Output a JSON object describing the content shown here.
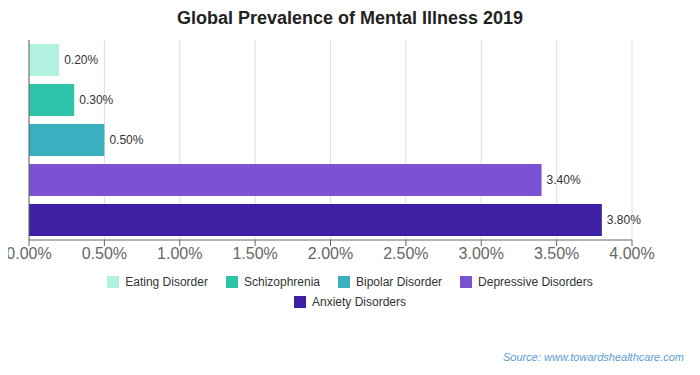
{
  "chart_data": {
    "type": "bar",
    "orientation": "horizontal",
    "title": "Global Prevalence of Mental Illness 2019",
    "categories": [
      "Eating Disorder",
      "Schizophrenia",
      "Bipolar Disorder",
      "Depressive Disorders",
      "Anxiety Disorders"
    ],
    "values": [
      0.2,
      0.3,
      0.5,
      3.4,
      3.8
    ],
    "value_labels": [
      "0.20%",
      "0.30%",
      "0.50%",
      "3.40%",
      "3.80%"
    ],
    "colors": [
      "#b2f0e0",
      "#2ec4a9",
      "#3aafc0",
      "#7b52d3",
      "#3d1fa3"
    ],
    "xlim": [
      0,
      4.0
    ],
    "xticks": [
      {
        "value": 0.0,
        "label": "0.00%"
      },
      {
        "value": 0.5,
        "label": "0.50%"
      },
      {
        "value": 1.0,
        "label": "1.00%"
      },
      {
        "value": 1.5,
        "label": "1.50%"
      },
      {
        "value": 2.0,
        "label": "2.00%"
      },
      {
        "value": 2.5,
        "label": "2.50%"
      },
      {
        "value": 3.0,
        "label": "3.00%"
      },
      {
        "value": 3.5,
        "label": "3.50%"
      },
      {
        "value": 4.0,
        "label": "4.00%"
      }
    ],
    "grid": true,
    "data_labels": true,
    "tick_labels": "x",
    "legend": "bottom",
    "annotations": [
      "Source: www.towardshealthcare.com"
    ]
  }
}
